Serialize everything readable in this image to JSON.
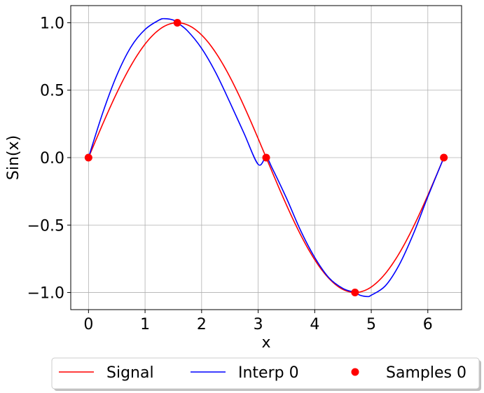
{
  "chart_data": {
    "type": "line",
    "xlabel": "x",
    "ylabel": "Sin(x)",
    "xlim": [
      -0.314,
      6.597
    ],
    "ylim": [
      -1.127,
      1.127
    ],
    "xticks": [
      0,
      1,
      2,
      3,
      4,
      5,
      6
    ],
    "xtick_labels": [
      "0",
      "1",
      "2",
      "3",
      "4",
      "5",
      "6"
    ],
    "yticks": [
      -1.0,
      -0.5,
      0.0,
      0.5,
      1.0
    ],
    "ytick_labels": [
      "−1.0",
      "−0.5",
      "0.0",
      "0.5",
      "1.0"
    ],
    "grid": true,
    "legend_position": "below plot, centered",
    "series": [
      {
        "name": "Signal",
        "kind": "line",
        "color": "#ff0000",
        "function": "sin(x)",
        "x_range": [
          0,
          6.2832
        ]
      },
      {
        "name": "Interp 0",
        "kind": "line",
        "color": "#0000ff",
        "x": [
          0,
          0.25,
          0.5,
          0.75,
          1.0,
          1.25,
          1.35,
          1.5,
          1.5708,
          1.75,
          2.0,
          2.25,
          2.5,
          2.75,
          3.0,
          3.1416,
          3.25,
          3.5,
          3.75,
          4.0,
          4.25,
          4.5,
          4.7124,
          4.8,
          4.93,
          5.0,
          5.25,
          5.5,
          5.75,
          6.0,
          6.2832
        ],
        "y": [
          0,
          0.33,
          0.61,
          0.82,
          0.95,
          1.02,
          1.03,
          1.02,
          1.0,
          0.94,
          0.81,
          0.63,
          0.41,
          0.18,
          -0.05,
          0.0,
          -0.08,
          -0.3,
          -0.54,
          -0.74,
          -0.89,
          -0.97,
          -1.0,
          -1.02,
          -1.03,
          -1.02,
          -0.95,
          -0.79,
          -0.56,
          -0.29,
          0.0
        ]
      },
      {
        "name": "Samples 0",
        "kind": "scatter",
        "color": "#ff0000",
        "x": [
          0,
          1.5708,
          3.1416,
          4.7124,
          6.2832
        ],
        "y": [
          0,
          1,
          0,
          -1,
          0
        ]
      }
    ]
  }
}
